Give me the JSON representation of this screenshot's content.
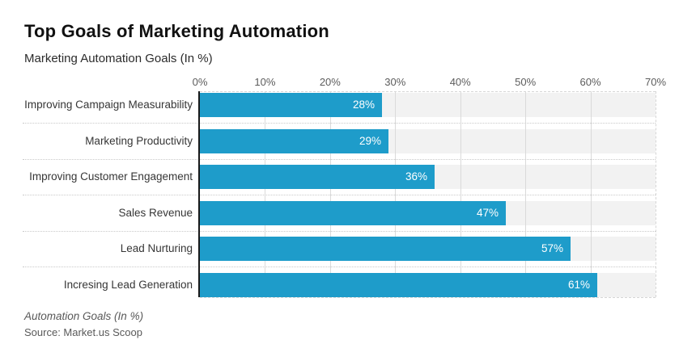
{
  "title": "Top Goals of Marketing Automation",
  "subtitle": "Marketing Automation Goals (In %)",
  "footer": {
    "caption": "Automation Goals (In %)",
    "source": "Source: Market.us Scoop"
  },
  "colors": {
    "bar": "#1e9cca",
    "track": "#f2f2f2",
    "gridline": "#dadada",
    "dashed_line": "#c9c9c9",
    "axis_line": "#1a1a1a",
    "axis_text": "#5c5c5c",
    "category_text": "#363636",
    "value_text": "#ffffff"
  },
  "chart_data": {
    "type": "bar",
    "orientation": "horizontal",
    "title": "Top Goals of Marketing Automation",
    "subtitle": "Marketing Automation Goals (In %)",
    "categories": [
      "Improving Campaign Measurability",
      "Marketing Productivity",
      "Improving Customer Engagement",
      "Sales Revenue",
      "Lead Nurturing",
      "Incresing Lead Generation"
    ],
    "values": [
      28,
      29,
      36,
      47,
      57,
      61
    ],
    "value_labels": [
      "28%",
      "29%",
      "36%",
      "47%",
      "57%",
      "61%"
    ],
    "xlabel": "",
    "ylabel": "",
    "xlim": [
      0,
      70
    ],
    "x_ticks": [
      "0%",
      "10%",
      "20%",
      "30%",
      "40%",
      "50%",
      "60%",
      "70%"
    ],
    "axis_position": "top",
    "grid": true,
    "legend": false
  }
}
